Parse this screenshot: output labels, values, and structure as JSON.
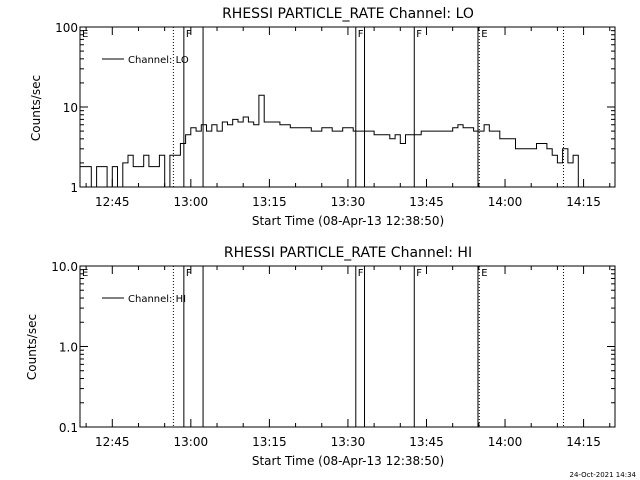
{
  "chart_data": [
    {
      "type": "line",
      "title": "RHESSI PARTICLE_RATE Channel: LO",
      "xlabel": "Start Time (08-Apr-13 12:38:50)",
      "ylabel": "Counts/sec",
      "y_scale": "log",
      "ylim": [
        1,
        100
      ],
      "y_tick_labels": [
        "1",
        "10",
        "100"
      ],
      "x_tick_labels": [
        "12:45",
        "13:00",
        "13:15",
        "13:30",
        "13:45",
        "14:00",
        "14:15"
      ],
      "xlim": [
        "12:38:50",
        "14:21:00"
      ],
      "legend_entries": [
        "Channel: LO"
      ],
      "legend_position": "top-left",
      "grid": false,
      "flag_letters": [
        "E",
        "F",
        "F",
        "F",
        "E"
      ],
      "series": [
        {
          "name": "Channel: LO",
          "color": "#000000",
          "x": [
            "12:38:50",
            "12:40:00",
            "12:41:00",
            "12:42:00",
            "12:43:00",
            "12:44:00",
            "12:45:00",
            "12:46:00",
            "12:47:00",
            "12:48:00",
            "12:49:00",
            "12:50:00",
            "12:51:00",
            "12:52:00",
            "12:53:00",
            "12:54:00",
            "12:55:00",
            "12:56:00",
            "12:57:00",
            "12:58:00",
            "12:59:00",
            "13:00:00",
            "13:01:00",
            "13:02:00",
            "13:03:00",
            "13:04:00",
            "13:05:00",
            "13:06:00",
            "13:07:00",
            "13:08:00",
            "13:09:00",
            "13:10:00",
            "13:11:00",
            "13:12:00",
            "13:13:00",
            "13:14:00",
            "13:15:00",
            "13:17:00",
            "13:19:00",
            "13:21:00",
            "13:23:00",
            "13:25:00",
            "13:27:00",
            "13:29:00",
            "13:31:00",
            "13:33:00",
            "13:35:00",
            "13:37:00",
            "13:38:00",
            "13:39:00",
            "13:40:00",
            "13:41:00",
            "13:42:00",
            "13:44:00",
            "13:46:00",
            "13:48:00",
            "13:50:00",
            "13:51:00",
            "13:52:00",
            "13:54:00",
            "13:56:00",
            "13:57:00",
            "13:58:00",
            "13:59:00",
            "14:00:00",
            "14:02:00",
            "14:04:00",
            "14:06:00",
            "14:08:00",
            "14:09:00",
            "14:10:00",
            "14:11:00",
            "14:12:00",
            "14:13:00",
            "14:14:00",
            "14:15:00"
          ],
          "values": [
            1.8,
            1.8,
            1.0,
            1.8,
            1.8,
            1.0,
            1.8,
            1.0,
            2.0,
            2.5,
            1.8,
            1.8,
            2.5,
            1.8,
            1.8,
            2.5,
            1.0,
            2.5,
            2.5,
            3.5,
            4.5,
            5.5,
            5.0,
            6.0,
            5.0,
            6.0,
            5.0,
            6.5,
            6.0,
            7.0,
            6.5,
            7.5,
            6.5,
            6.0,
            14.0,
            6.5,
            6.5,
            6.0,
            5.5,
            5.5,
            5.0,
            5.5,
            5.0,
            5.5,
            5.0,
            5.0,
            4.5,
            4.5,
            4.0,
            4.5,
            3.5,
            4.5,
            4.5,
            5.0,
            5.0,
            5.0,
            5.5,
            6.0,
            5.5,
            5.0,
            6.0,
            5.0,
            5.0,
            4.0,
            4.0,
            3.0,
            3.0,
            3.5,
            3.0,
            2.5,
            2.0,
            3.0,
            2.0,
            2.5,
            1.0,
            1.0
          ]
        }
      ]
    },
    {
      "type": "line",
      "title": "RHESSI PARTICLE_RATE Channel: HI",
      "xlabel": "Start Time (08-Apr-13 12:38:50)",
      "ylabel": "Counts/sec",
      "y_scale": "log",
      "ylim": [
        0.1,
        10.0
      ],
      "y_tick_labels": [
        "0.1",
        "1.0",
        "10.0"
      ],
      "x_tick_labels": [
        "12:45",
        "13:00",
        "13:15",
        "13:30",
        "13:45",
        "14:00",
        "14:15"
      ],
      "xlim": [
        "12:38:50",
        "14:21:00"
      ],
      "legend_entries": [
        "Channel: HI"
      ],
      "legend_position": "top-left",
      "grid": false,
      "flag_letters": [
        "E",
        "F",
        "F",
        "F",
        "E"
      ],
      "series": [
        {
          "name": "Channel: HI",
          "color": "#000000",
          "x": [],
          "values": []
        }
      ]
    }
  ],
  "footer": {
    "stamp": "24-Oct-2021 14:34"
  }
}
